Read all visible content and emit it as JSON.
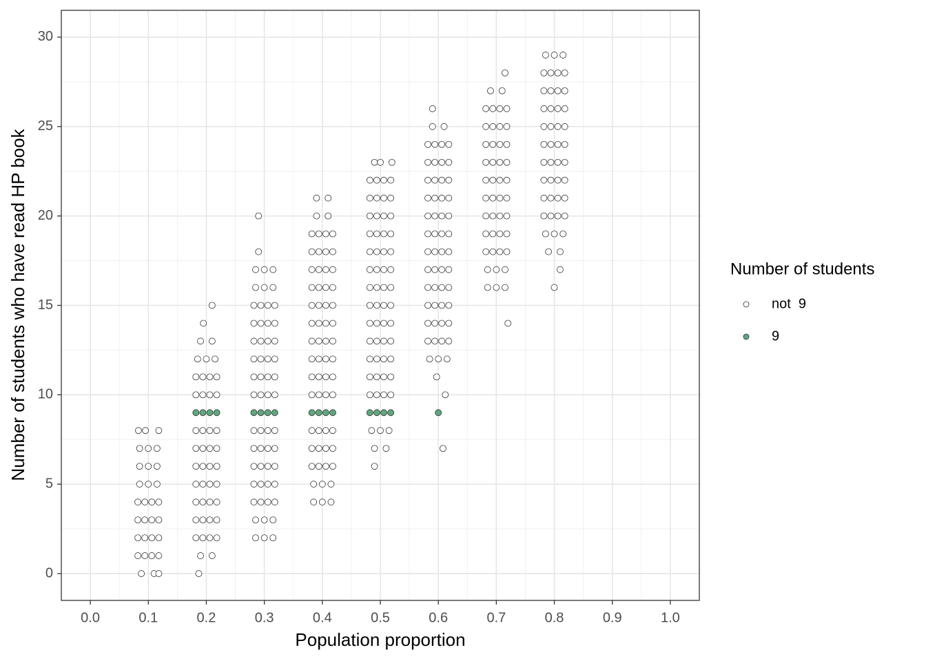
{
  "chart_data": {
    "type": "scatter",
    "x_label": "Population proportion",
    "y_label": "Number of students who have read HP book",
    "legend_title": "Number of students",
    "xlim": [
      -0.05,
      1.05
    ],
    "ylim": [
      -1.5,
      31.5
    ],
    "xticks": [
      {
        "value": 0,
        "label": "0.0"
      },
      0.1,
      0.2,
      0.3,
      0.4,
      0.5,
      0.6,
      0.7,
      0.8,
      0.9,
      {
        "value": 1,
        "label": "1.0"
      }
    ],
    "yticks": [
      0,
      5,
      10,
      15,
      20,
      25,
      30
    ],
    "grid": true,
    "minor_grid": true,
    "legend_position": "right",
    "series": [
      {
        "name": "not  9",
        "color": "#ffffff",
        "x": [
          0.088,
          0.11,
          0.118,
          0.082,
          0.094,
          0.106,
          0.118,
          0.082,
          0.094,
          0.106,
          0.118,
          0.082,
          0.094,
          0.106,
          0.118,
          0.082,
          0.094,
          0.106,
          0.118,
          0.085,
          0.1,
          0.115,
          0.085,
          0.1,
          0.115,
          0.085,
          0.1,
          0.115,
          0.083,
          0.095,
          0.118,
          0.187,
          0.19,
          0.21,
          0.182,
          0.194,
          0.206,
          0.218,
          0.182,
          0.194,
          0.206,
          0.218,
          0.182,
          0.194,
          0.206,
          0.218,
          0.182,
          0.194,
          0.206,
          0.218,
          0.182,
          0.194,
          0.206,
          0.218,
          0.182,
          0.194,
          0.206,
          0.218,
          0.182,
          0.194,
          0.206,
          0.218,
          0.182,
          0.194,
          0.206,
          0.218,
          0.182,
          0.194,
          0.206,
          0.218,
          0.185,
          0.2,
          0.215,
          0.19,
          0.21,
          0.195,
          0.21,
          0.285,
          0.3,
          0.315,
          0.285,
          0.3,
          0.315,
          0.282,
          0.294,
          0.306,
          0.318,
          0.282,
          0.294,
          0.306,
          0.318,
          0.282,
          0.294,
          0.306,
          0.318,
          0.282,
          0.294,
          0.306,
          0.318,
          0.282,
          0.294,
          0.306,
          0.318,
          0.282,
          0.294,
          0.306,
          0.318,
          0.282,
          0.294,
          0.306,
          0.318,
          0.282,
          0.294,
          0.306,
          0.318,
          0.282,
          0.294,
          0.306,
          0.318,
          0.282,
          0.294,
          0.306,
          0.318,
          0.282,
          0.294,
          0.306,
          0.318,
          0.285,
          0.3,
          0.315,
          0.285,
          0.3,
          0.315,
          0.29,
          0.29,
          0.385,
          0.4,
          0.415,
          0.385,
          0.4,
          0.415,
          0.382,
          0.394,
          0.406,
          0.418,
          0.382,
          0.394,
          0.406,
          0.418,
          0.382,
          0.394,
          0.406,
          0.418,
          0.382,
          0.394,
          0.406,
          0.418,
          0.382,
          0.394,
          0.406,
          0.418,
          0.382,
          0.394,
          0.406,
          0.418,
          0.382,
          0.394,
          0.406,
          0.418,
          0.382,
          0.394,
          0.406,
          0.418,
          0.382,
          0.394,
          0.406,
          0.418,
          0.382,
          0.394,
          0.406,
          0.418,
          0.382,
          0.394,
          0.406,
          0.418,
          0.382,
          0.394,
          0.406,
          0.418,
          0.382,
          0.394,
          0.406,
          0.418,
          0.39,
          0.41,
          0.39,
          0.41,
          0.49,
          0.49,
          0.51,
          0.485,
          0.5,
          0.515,
          0.482,
          0.494,
          0.506,
          0.518,
          0.482,
          0.494,
          0.506,
          0.518,
          0.482,
          0.494,
          0.506,
          0.518,
          0.482,
          0.494,
          0.506,
          0.518,
          0.482,
          0.494,
          0.506,
          0.518,
          0.482,
          0.494,
          0.506,
          0.518,
          0.482,
          0.494,
          0.506,
          0.518,
          0.482,
          0.494,
          0.506,
          0.518,
          0.482,
          0.494,
          0.506,
          0.518,
          0.482,
          0.494,
          0.506,
          0.518,
          0.482,
          0.494,
          0.506,
          0.518,
          0.482,
          0.494,
          0.506,
          0.518,
          0.482,
          0.494,
          0.506,
          0.518,
          0.49,
          0.5,
          0.52,
          0.608,
          0.612,
          0.597,
          0.585,
          0.6,
          0.615,
          0.582,
          0.594,
          0.606,
          0.618,
          0.582,
          0.594,
          0.606,
          0.618,
          0.582,
          0.594,
          0.606,
          0.618,
          0.582,
          0.594,
          0.606,
          0.618,
          0.582,
          0.594,
          0.606,
          0.618,
          0.582,
          0.594,
          0.606,
          0.618,
          0.582,
          0.594,
          0.606,
          0.618,
          0.582,
          0.594,
          0.606,
          0.618,
          0.582,
          0.594,
          0.606,
          0.618,
          0.582,
          0.594,
          0.606,
          0.618,
          0.582,
          0.594,
          0.606,
          0.618,
          0.582,
          0.594,
          0.606,
          0.618,
          0.59,
          0.61,
          0.59,
          0.72,
          0.685,
          0.7,
          0.715,
          0.685,
          0.7,
          0.715,
          0.682,
          0.694,
          0.706,
          0.718,
          0.682,
          0.694,
          0.706,
          0.718,
          0.682,
          0.694,
          0.706,
          0.718,
          0.682,
          0.694,
          0.706,
          0.718,
          0.682,
          0.694,
          0.706,
          0.718,
          0.682,
          0.694,
          0.706,
          0.718,
          0.682,
          0.694,
          0.706,
          0.718,
          0.682,
          0.694,
          0.706,
          0.718,
          0.682,
          0.694,
          0.706,
          0.718,
          0.69,
          0.71,
          0.715,
          0.8,
          0.81,
          0.79,
          0.81,
          0.785,
          0.8,
          0.815,
          0.782,
          0.794,
          0.806,
          0.818,
          0.782,
          0.794,
          0.806,
          0.818,
          0.782,
          0.794,
          0.806,
          0.818,
          0.782,
          0.794,
          0.806,
          0.818,
          0.782,
          0.794,
          0.806,
          0.818,
          0.782,
          0.794,
          0.806,
          0.818,
          0.782,
          0.794,
          0.806,
          0.818,
          0.782,
          0.794,
          0.806,
          0.818,
          0.782,
          0.794,
          0.806,
          0.818,
          0.785,
          0.8,
          0.815
        ],
        "values": [
          0,
          0,
          0,
          1,
          1,
          1,
          1,
          2,
          2,
          2,
          2,
          3,
          3,
          3,
          3,
          4,
          4,
          4,
          4,
          5,
          5,
          5,
          6,
          6,
          6,
          7,
          7,
          7,
          8,
          8,
          8,
          0,
          1,
          1,
          2,
          2,
          2,
          2,
          3,
          3,
          3,
          3,
          4,
          4,
          4,
          4,
          5,
          5,
          5,
          5,
          6,
          6,
          6,
          6,
          7,
          7,
          7,
          7,
          8,
          8,
          8,
          8,
          10,
          10,
          10,
          10,
          11,
          11,
          11,
          11,
          12,
          12,
          12,
          13,
          13,
          14,
          15,
          2,
          2,
          2,
          3,
          3,
          3,
          4,
          4,
          4,
          4,
          5,
          5,
          5,
          5,
          6,
          6,
          6,
          6,
          7,
          7,
          7,
          7,
          8,
          8,
          8,
          8,
          10,
          10,
          10,
          10,
          11,
          11,
          11,
          11,
          12,
          12,
          12,
          12,
          13,
          13,
          13,
          13,
          14,
          14,
          14,
          14,
          15,
          15,
          15,
          15,
          16,
          16,
          16,
          17,
          17,
          17,
          18,
          20,
          4,
          4,
          4,
          5,
          5,
          5,
          6,
          6,
          6,
          6,
          7,
          7,
          7,
          7,
          8,
          8,
          8,
          8,
          10,
          10,
          10,
          10,
          11,
          11,
          11,
          11,
          12,
          12,
          12,
          12,
          13,
          13,
          13,
          13,
          14,
          14,
          14,
          14,
          15,
          15,
          15,
          15,
          16,
          16,
          16,
          16,
          17,
          17,
          17,
          17,
          18,
          18,
          18,
          18,
          19,
          19,
          19,
          19,
          20,
          20,
          21,
          21,
          6,
          7,
          7,
          8,
          8,
          8,
          10,
          10,
          10,
          10,
          11,
          11,
          11,
          11,
          12,
          12,
          12,
          12,
          13,
          13,
          13,
          13,
          14,
          14,
          14,
          14,
          15,
          15,
          15,
          15,
          16,
          16,
          16,
          16,
          17,
          17,
          17,
          17,
          18,
          18,
          18,
          18,
          19,
          19,
          19,
          19,
          20,
          20,
          20,
          20,
          21,
          21,
          21,
          21,
          22,
          22,
          22,
          22,
          23,
          23,
          23,
          7,
          10,
          11,
          12,
          12,
          12,
          13,
          13,
          13,
          13,
          14,
          14,
          14,
          14,
          15,
          15,
          15,
          15,
          16,
          16,
          16,
          16,
          17,
          17,
          17,
          17,
          18,
          18,
          18,
          18,
          19,
          19,
          19,
          19,
          20,
          20,
          20,
          20,
          21,
          21,
          21,
          21,
          22,
          22,
          22,
          22,
          23,
          23,
          23,
          23,
          24,
          24,
          24,
          24,
          25,
          25,
          26,
          14,
          16,
          16,
          16,
          17,
          17,
          17,
          18,
          18,
          18,
          18,
          19,
          19,
          19,
          19,
          20,
          20,
          20,
          20,
          21,
          21,
          21,
          21,
          22,
          22,
          22,
          22,
          23,
          23,
          23,
          23,
          24,
          24,
          24,
          24,
          25,
          25,
          25,
          25,
          26,
          26,
          26,
          26,
          27,
          27,
          28,
          16,
          17,
          18,
          18,
          19,
          19,
          19,
          20,
          20,
          20,
          20,
          21,
          21,
          21,
          21,
          22,
          22,
          22,
          22,
          23,
          23,
          23,
          23,
          24,
          24,
          24,
          24,
          25,
          25,
          25,
          25,
          26,
          26,
          26,
          26,
          27,
          27,
          27,
          27,
          28,
          28,
          28,
          28,
          29,
          29,
          29
        ]
      },
      {
        "name": "9",
        "color": "#5fa77e",
        "x": [
          0.182,
          0.194,
          0.206,
          0.218,
          0.282,
          0.294,
          0.306,
          0.318,
          0.382,
          0.394,
          0.406,
          0.418,
          0.482,
          0.494,
          0.506,
          0.518,
          0.6
        ],
        "values": [
          9,
          9,
          9,
          9,
          9,
          9,
          9,
          9,
          9,
          9,
          9,
          9,
          9,
          9,
          9,
          9,
          9
        ]
      }
    ]
  }
}
